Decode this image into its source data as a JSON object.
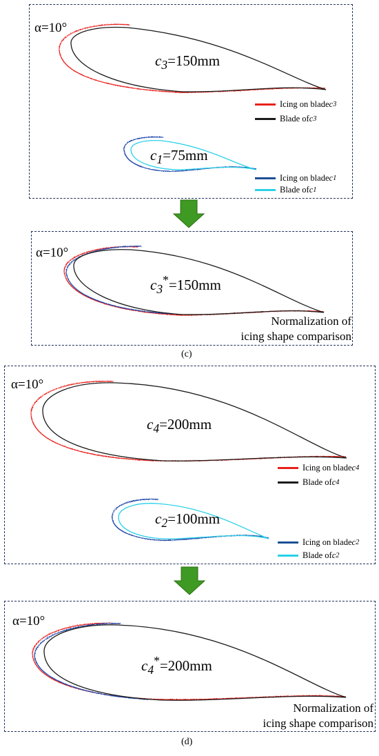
{
  "colors": {
    "icing_large": "#e8201c",
    "blade_large": "#1a1a1a",
    "icing_small": "#1f45a8",
    "blade_small": "#29d0e8",
    "icing_small_legend": "#1b4f95",
    "arrow": "#3e9a22",
    "panel_border": "#1f2f5c"
  },
  "icons": {
    "transition": "down-arrow-icon"
  },
  "panel_c_top": {
    "alpha": "α=10°",
    "chord_large": {
      "sym": "c",
      "sub": "3",
      "value": "=150mm"
    },
    "chord_small": {
      "sym": "c",
      "sub": "1",
      "value": "=75mm"
    },
    "legend": [
      {
        "text": "Icing on blade ",
        "sym": "c",
        "sub": "3"
      },
      {
        "text": "Blade of ",
        "sym": "c",
        "sub": "3"
      },
      {
        "text": "Icing on blade ",
        "sym": "c",
        "sub": "1"
      },
      {
        "text": "Blade of ",
        "sym": "c",
        "sub": "1"
      }
    ]
  },
  "panel_c_bottom": {
    "alpha": "α=10°",
    "chord": {
      "sym": "c",
      "sub": "3",
      "sup": "*",
      "value": "=150mm"
    },
    "note_line1": "Normalization of",
    "note_line2": "icing shape comparison"
  },
  "caption_c": "(c)",
  "panel_d_top": {
    "alpha": "α=10°",
    "chord_large": {
      "sym": "c",
      "sub": "4",
      "value": "=200mm"
    },
    "chord_small": {
      "sym": "c",
      "sub": "2",
      "value": "=100mm"
    },
    "legend": [
      {
        "text": "Icing on blade ",
        "sym": "c",
        "sub": "4"
      },
      {
        "text": "Blade of ",
        "sym": "c",
        "sub": "4"
      },
      {
        "text": "Icing on blade ",
        "sym": "c",
        "sub": "2"
      },
      {
        "text": "Blade of ",
        "sym": "c",
        "sub": "2"
      }
    ]
  },
  "panel_d_bottom": {
    "alpha": "α=10°",
    "chord": {
      "sym": "c",
      "sub": "4",
      "sup": "*",
      "value": "=200mm"
    },
    "note_line1": "Normalization of",
    "note_line2": "icing shape comparison"
  },
  "caption_d": "(d)"
}
